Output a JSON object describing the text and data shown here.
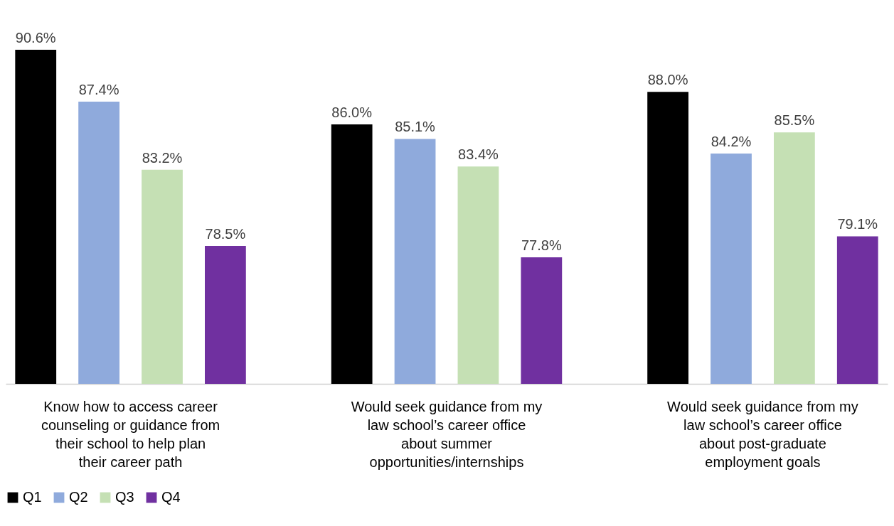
{
  "chart_data": {
    "type": "bar",
    "categories": [
      "Know how to access career counseling or guidance from their school to help plan their career path",
      "Would seek guidance from my law school’s career office about summer opportunities/internships",
      "Would seek guidance from my law school’s career office about post-graduate employment goals"
    ],
    "series": [
      {
        "name": "Q1",
        "color": "#000000",
        "values": [
          90.6,
          86.0,
          88.0
        ],
        "value_labels": [
          "90.6%",
          "86.0%",
          "88.0%"
        ]
      },
      {
        "name": "Q2",
        "color": "#8faadc",
        "values": [
          87.4,
          85.1,
          84.2
        ],
        "value_labels": [
          "87.4%",
          "85.1%",
          "84.2%"
        ]
      },
      {
        "name": "Q3",
        "color": "#c5e0b4",
        "values": [
          83.2,
          83.4,
          85.5
        ],
        "value_labels": [
          "83.2%",
          "83.4%",
          "85.5%"
        ]
      },
      {
        "name": "Q4",
        "color": "#7030a0",
        "values": [
          78.5,
          77.8,
          79.1
        ],
        "value_labels": [
          "78.5%",
          "77.8%",
          "79.1%"
        ]
      }
    ],
    "ylim": [
      70,
      90.6
    ],
    "legend": "bottom",
    "grid": false
  }
}
